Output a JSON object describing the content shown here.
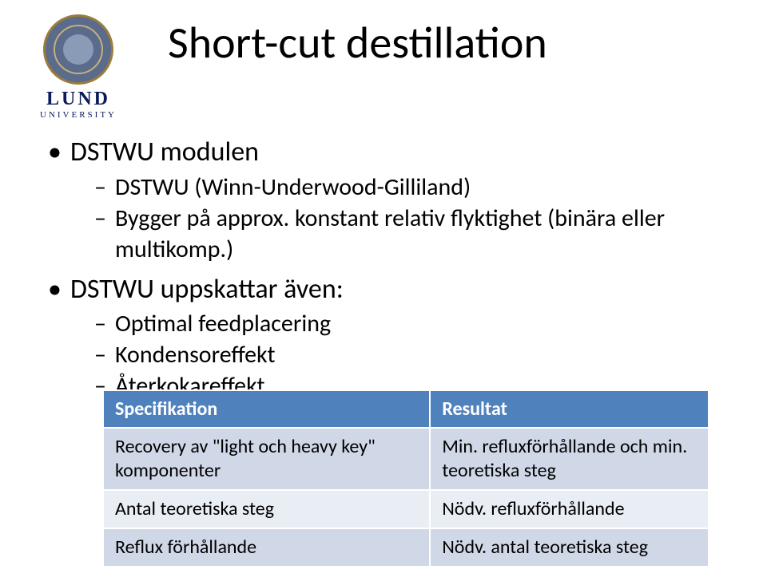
{
  "logo": {
    "word": "LUND",
    "sub": "UNIVERSITY"
  },
  "title": "Short-cut destillation",
  "bullets": [
    {
      "text": "DSTWU modulen",
      "children": [
        "DSTWU (Winn-Underwood-Gilliland)",
        "Bygger på approx. konstant relativ flyktighet (binära eller multikomp.)"
      ]
    },
    {
      "text": "DSTWU uppskattar även:",
      "children": [
        "Optimal feedplacering",
        "Kondensoreffekt",
        "Återkokareffekt"
      ]
    }
  ],
  "table": {
    "header_bg": "#4f81bd",
    "header_fg": "#ffffff",
    "row_bg": "#d0d8e8",
    "row_alt_bg": "#e9edf4",
    "columns": [
      "Specifikation",
      "Resultat"
    ],
    "rows": [
      [
        "Recovery av \"light och heavy key\" komponenter",
        "Min. refluxförhållande och min. teoretiska steg"
      ],
      [
        "Antal teoretiska steg",
        "Nödv. refluxförhållande"
      ],
      [
        "Reflux förhållande",
        "Nödv. antal teoretiska steg"
      ]
    ]
  }
}
